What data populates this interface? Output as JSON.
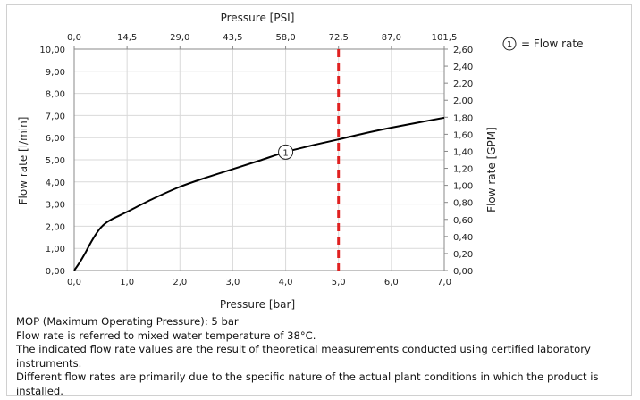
{
  "chart_data": {
    "type": "line",
    "title": "",
    "xlabel": "Pressure [bar]",
    "ylabel": "Flow rate [l/min]",
    "x2label": "Pressure [PSI]",
    "y2label": "Flow rate [GPM]",
    "xlim": [
      0,
      7
    ],
    "ylim": [
      0,
      10
    ],
    "y2lim": [
      0,
      2.6
    ],
    "grid": true,
    "x_ticks": [
      "0,0",
      "1,0",
      "2,0",
      "3,0",
      "4,0",
      "5,0",
      "6,0",
      "7,0"
    ],
    "x_tick_values": [
      0,
      1,
      2,
      3,
      4,
      5,
      6,
      7
    ],
    "y_ticks": [
      "0,00",
      "1,00",
      "2,00",
      "3,00",
      "4,00",
      "5,00",
      "6,00",
      "7,00",
      "8,00",
      "9,00",
      "10,00"
    ],
    "y_tick_values": [
      0,
      1,
      2,
      3,
      4,
      5,
      6,
      7,
      8,
      9,
      10
    ],
    "x2_ticks": [
      "0,0",
      "14,5",
      "29,0",
      "43,5",
      "58,0",
      "72,5",
      "87,0",
      "101,5"
    ],
    "y2_ticks": [
      "0,00",
      "0,20",
      "0,40",
      "0,60",
      "0,80",
      "1,00",
      "1,20",
      "1,40",
      "1,60",
      "1,80",
      "2,00",
      "2,20",
      "2,40",
      "2,60"
    ],
    "series": [
      {
        "marker_label": "1",
        "color": "#000000",
        "x": [
          0,
          0.1,
          0.2,
          0.3,
          0.4,
          0.5,
          0.6,
          0.7,
          0.8,
          1.0,
          1.5,
          2.0,
          2.5,
          3.0,
          3.5,
          4.0,
          4.5,
          5.0,
          5.5,
          6.0,
          6.5,
          7.0
        ],
        "y": [
          0,
          0.35,
          0.75,
          1.2,
          1.6,
          1.93,
          2.15,
          2.3,
          2.42,
          2.65,
          3.25,
          3.78,
          4.2,
          4.58,
          4.96,
          5.35,
          5.65,
          5.92,
          6.2,
          6.45,
          6.68,
          6.9
        ]
      }
    ],
    "annotations": [
      {
        "type": "vline",
        "x": 5.0,
        "color": "#e02020",
        "style": "dashed"
      },
      {
        "type": "circle-label",
        "text": "1",
        "x": 4.0,
        "y": 5.35
      }
    ],
    "legend": {
      "symbol": "1",
      "text": "= Flow rate",
      "placement": "top-right"
    }
  },
  "notes": [
    "MOP (Maximum Operating Pressure): 5 bar",
    "Flow rate is referred to mixed water temperature of 38°C.",
    "The indicated flow rate values are the result of theoretical measurements conducted using certified laboratory instruments.",
    "Different flow rates are primarily due to the specific nature of the actual plant conditions in which the product is installed."
  ]
}
